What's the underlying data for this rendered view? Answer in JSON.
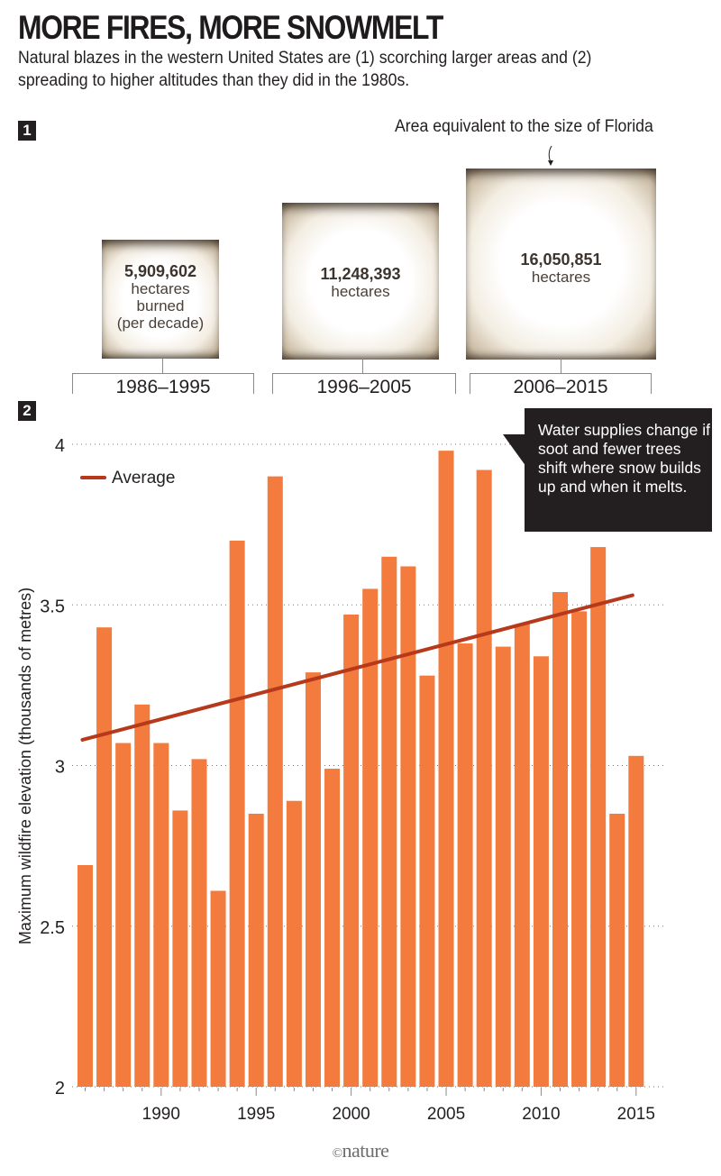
{
  "header": {
    "title": "MORE FIRES, MORE SNOWMELT",
    "subtitle": "Natural blazes in the western United States are (1) scorching larger areas and (2) spreading to higher altitudes than they did in the 1980s."
  },
  "section1": {
    "badge": "1",
    "note": "Area equivalent to the size of Florida",
    "decades": [
      {
        "label": "1986–1995",
        "value": "5,909,602",
        "lines": [
          "hectares",
          "burned",
          "(per decade)"
        ],
        "hectares": 5909602
      },
      {
        "label": "1996–2005",
        "value": "11,248,393",
        "lines": [
          "hectares"
        ],
        "hectares": 11248393
      },
      {
        "label": "2006–2015",
        "value": "16,050,851",
        "lines": [
          "hectares"
        ],
        "hectares": 16050851
      }
    ]
  },
  "section2": {
    "badge": "2",
    "callout": "Water supplies change if soot and fewer trees shift where snow builds up and when it melts.",
    "legend_label": "Average"
  },
  "colors": {
    "bar": "#f47b3e",
    "trend": "#b5391a",
    "dark": "#231f20"
  },
  "chart_data": {
    "type": "bar",
    "title": "",
    "xlabel": "",
    "ylabel": "Maximum wildfire elevation (thousands of metres)",
    "ylim": [
      2,
      4
    ],
    "yticks": [
      2,
      2.5,
      3,
      3.5,
      4
    ],
    "ytick_labels": [
      "2",
      "2.5",
      "3",
      "3.5",
      "4"
    ],
    "xtick_labels": [
      "1990",
      "1995",
      "2000",
      "2005",
      "2010",
      "2015"
    ],
    "grid": true,
    "legend": "top-left",
    "categories": [
      1986,
      1987,
      1988,
      1989,
      1990,
      1991,
      1992,
      1993,
      1994,
      1995,
      1996,
      1997,
      1998,
      1999,
      2000,
      2001,
      2002,
      2003,
      2004,
      2005,
      2006,
      2007,
      2008,
      2009,
      2010,
      2011,
      2012,
      2013,
      2014,
      2015
    ],
    "series": [
      {
        "name": "Maximum wildfire elevation",
        "values": [
          2.69,
          3.43,
          3.07,
          3.19,
          3.07,
          2.86,
          3.02,
          2.61,
          3.7,
          2.85,
          3.9,
          2.89,
          3.29,
          2.99,
          3.47,
          3.55,
          3.65,
          3.62,
          3.28,
          3.98,
          3.38,
          3.92,
          3.37,
          3.44,
          3.34,
          3.54,
          3.48,
          3.68,
          2.85,
          3.03
        ]
      },
      {
        "name": "Average",
        "type": "line",
        "x": [
          1986,
          2015
        ],
        "values": [
          3.08,
          3.53
        ]
      }
    ]
  },
  "footer": {
    "copyright": "©",
    "brand": "nature"
  }
}
